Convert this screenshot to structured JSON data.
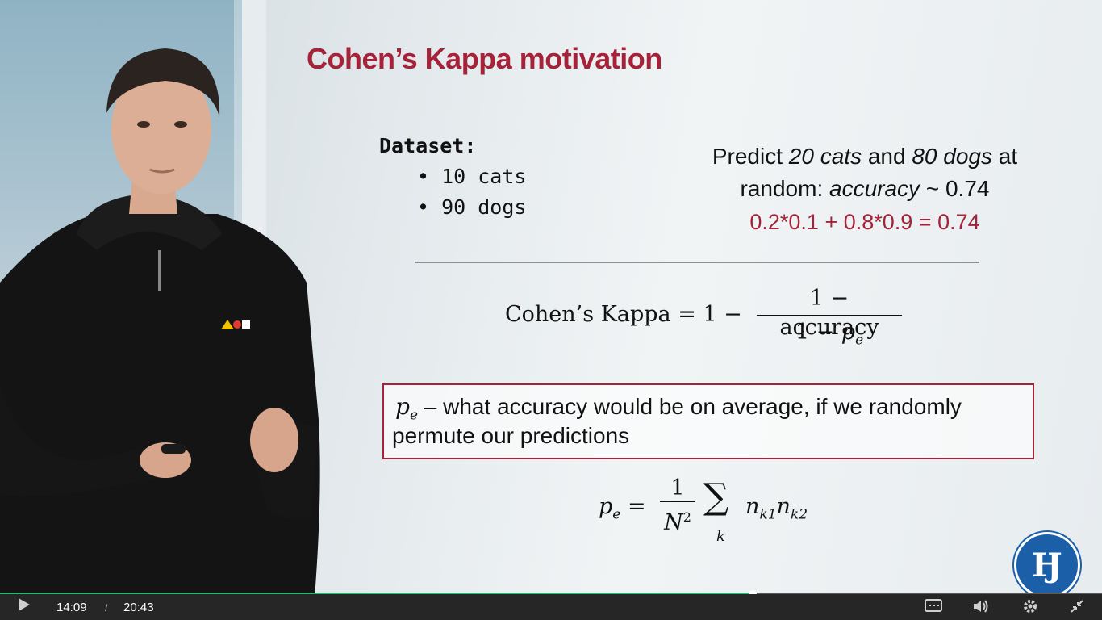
{
  "slide": {
    "title": "Cohen’s Kappa motivation",
    "dataset": {
      "heading": "Dataset:",
      "items": [
        "• 10 cats",
        "• 90 dogs"
      ]
    },
    "predict": {
      "pre": "Predict ",
      "cats": "20 cats",
      "and": " and ",
      "dogs": "80 dogs",
      "at": " at",
      "random": "random: ",
      "accuracy": "accuracy",
      "value": " ~ 0.74"
    },
    "calc": "0.2*0.1 + 0.8*0.9 = 0.74",
    "kappa": {
      "lhs": "Cohen’s Kappa = 1 −",
      "numerator": "1 − accuracy",
      "den_pre": "1 − ",
      "den_var": "p",
      "den_sub": "e"
    },
    "definition": {
      "var": "p",
      "sub": "e",
      "dash": " –  ",
      "line1": "what accuracy would be on average, if we randomly",
      "line2": "permute our predictions"
    },
    "pe_formula": {
      "lhs_var": "p",
      "lhs_sub": "e",
      "eq": " = ",
      "num": "1",
      "den": "N",
      "den_sup": "2",
      "sum": "∑",
      "sum_sub": "k",
      "term1": "n",
      "term1_sub": "k1",
      "term2": "n",
      "term2_sub": "k2"
    },
    "logo_text": "Ӈ"
  },
  "player": {
    "current_time": "14:09",
    "separator": "/",
    "duration": "20:43",
    "progress_fraction": 0.683,
    "icons": [
      "play-icon",
      "subtitles-icon",
      "volume-icon",
      "settings-icon",
      "fullscreen-exit-icon"
    ],
    "accent_color": "#2bb673"
  }
}
